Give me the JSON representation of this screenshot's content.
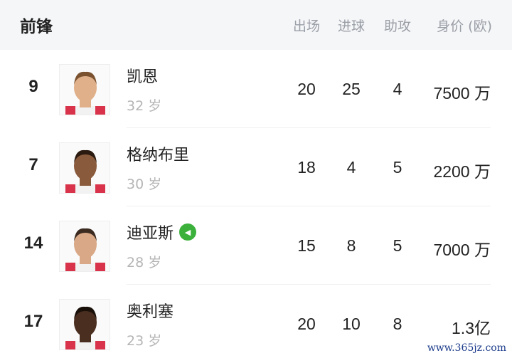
{
  "header": {
    "title": "前锋",
    "columns": [
      "出场",
      "进球",
      "助攻",
      "身价 (欧)"
    ]
  },
  "players": [
    {
      "number": "9",
      "name": "凯恩",
      "age": "32 岁",
      "apps": "20",
      "goals": "25",
      "assists": "4",
      "value": "7500 万",
      "badge": false,
      "skin": "#e0b08a",
      "hair": "#7a5230"
    },
    {
      "number": "7",
      "name": "格纳布里",
      "age": "30 岁",
      "apps": "18",
      "goals": "4",
      "assists": "5",
      "value": "2200 万",
      "badge": false,
      "skin": "#8a5a3c",
      "hair": "#2a1a10"
    },
    {
      "number": "14",
      "name": "迪亚斯",
      "age": "28 岁",
      "apps": "15",
      "goals": "8",
      "assists": "5",
      "value": "7000 万",
      "badge": true,
      "skin": "#d9a886",
      "hair": "#3a2a20"
    },
    {
      "number": "17",
      "name": "奥利塞",
      "age": "23 岁",
      "apps": "20",
      "goals": "10",
      "assists": "8",
      "value": "1.3亿",
      "badge": false,
      "skin": "#4a2e20",
      "hair": "#1a100a"
    }
  ],
  "badge_color": "#3bb13b",
  "watermark": "www.365jz.com"
}
